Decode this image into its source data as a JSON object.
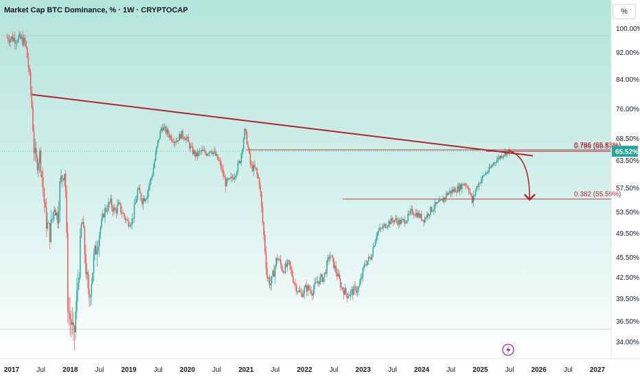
{
  "header": {
    "title": "Market Cap BTC Dominance, % · 1W · CRYPTOCAP",
    "scale_button": "%"
  },
  "colors": {
    "bg_top": "#b9e6dd",
    "bg_bottom": "#ffffff",
    "up": "#26a69a",
    "down": "#ef5350",
    "trend": "#b2222f",
    "price_badge": "#26a69a"
  },
  "chart_data": {
    "type": "candlestick",
    "title": "Market Cap BTC Dominance, % · 1W · CRYPTOCAP",
    "xlabel": "",
    "ylabel": "",
    "ylim": [
      33.0,
      101.5
    ],
    "xlim": [
      2016.92,
      2027.35
    ],
    "y_ticks": [
      "100.00%",
      "92.00%",
      "84.00%",
      "76.00%",
      "68.50%",
      "63.50%",
      "57.50%",
      "53.50%",
      "49.50%",
      "45.50%",
      "42.50%",
      "39.50%",
      "36.50%",
      "34.00%"
    ],
    "y_tick_values": [
      100,
      92,
      84,
      76,
      68.5,
      63.5,
      57.5,
      53.5,
      49.5,
      45.5,
      42.5,
      39.5,
      36.5,
      34
    ],
    "x_ticks": [
      {
        "label": "2017",
        "x": 2017.0,
        "year": true
      },
      {
        "label": "Jul",
        "x": 2017.5,
        "year": false
      },
      {
        "label": "2018",
        "x": 2018.0,
        "year": true
      },
      {
        "label": "Jul",
        "x": 2018.5,
        "year": false
      },
      {
        "label": "2019",
        "x": 2019.0,
        "year": true
      },
      {
        "label": "Jul",
        "x": 2019.5,
        "year": false
      },
      {
        "label": "2020",
        "x": 2020.0,
        "year": true
      },
      {
        "label": "Jul",
        "x": 2020.5,
        "year": false
      },
      {
        "label": "2021",
        "x": 2021.0,
        "year": true
      },
      {
        "label": "Jul",
        "x": 2021.5,
        "year": false
      },
      {
        "label": "2022",
        "x": 2022.0,
        "year": true
      },
      {
        "label": "Jul",
        "x": 2022.5,
        "year": false
      },
      {
        "label": "2023",
        "x": 2023.0,
        "year": true
      },
      {
        "label": "Jul",
        "x": 2023.5,
        "year": false
      },
      {
        "label": "2024",
        "x": 2024.0,
        "year": true
      },
      {
        "label": "Jul",
        "x": 2024.5,
        "year": false
      },
      {
        "label": "2025",
        "x": 2025.0,
        "year": true
      },
      {
        "label": "Jul",
        "x": 2025.5,
        "year": false
      },
      {
        "label": "2026",
        "x": 2026.0,
        "year": true
      },
      {
        "label": "Jul",
        "x": 2026.5,
        "year": false
      },
      {
        "label": "2027",
        "x": 2027.0,
        "year": true
      }
    ],
    "current_price": {
      "value": 65.52,
      "label": "65.52%"
    },
    "horizontal_gridlines": [
      97.5,
      35.5
    ],
    "trendline": {
      "from": [
        2017.35,
        79.8
      ],
      "to": [
        2025.9,
        64.5
      ]
    },
    "fib_levels": [
      {
        "label": "0.786 (65.83%)",
        "value": 65.83,
        "x_start": 2021.0
      },
      {
        "label": "0.786 (65.51%)",
        "value": 65.51,
        "x_start": 2025.1
      },
      {
        "label": "0.382 (55.59%)",
        "value": 55.59,
        "x_start": 2022.65
      }
    ],
    "projection": {
      "from": [
        2025.5,
        65.6
      ],
      "to": [
        2025.9,
        55.5
      ]
    },
    "path": [
      [
        2016.92,
        97.0
      ],
      [
        2017.05,
        96.6
      ],
      [
        2017.18,
        96.3
      ],
      [
        2017.25,
        95.2
      ],
      [
        2017.3,
        88.5
      ],
      [
        2017.35,
        80.0
      ],
      [
        2017.4,
        66.0
      ],
      [
        2017.45,
        62.5
      ],
      [
        2017.5,
        65.0
      ],
      [
        2017.55,
        58.0
      ],
      [
        2017.6,
        52.0
      ],
      [
        2017.67,
        49.5
      ],
      [
        2017.75,
        55.0
      ],
      [
        2017.8,
        52.0
      ],
      [
        2017.85,
        59.0
      ],
      [
        2017.93,
        61.5
      ],
      [
        2017.98,
        38.0
      ],
      [
        2018.04,
        36.2
      ],
      [
        2018.08,
        33.8
      ],
      [
        2018.12,
        38.5
      ],
      [
        2018.17,
        44.0
      ],
      [
        2018.22,
        52.5
      ],
      [
        2018.28,
        44.5
      ],
      [
        2018.33,
        39.0
      ],
      [
        2018.42,
        45.0
      ],
      [
        2018.5,
        49.0
      ],
      [
        2018.6,
        53.5
      ],
      [
        2018.7,
        55.0
      ],
      [
        2018.78,
        53.5
      ],
      [
        2018.85,
        54.5
      ],
      [
        2018.92,
        53.0
      ],
      [
        2019.0,
        51.5
      ],
      [
        2019.08,
        52.0
      ],
      [
        2019.17,
        57.0
      ],
      [
        2019.25,
        55.5
      ],
      [
        2019.33,
        56.5
      ],
      [
        2019.42,
        60.5
      ],
      [
        2019.5,
        66.5
      ],
      [
        2019.58,
        71.5
      ],
      [
        2019.67,
        70.0
      ],
      [
        2019.75,
        68.5
      ],
      [
        2019.83,
        68.0
      ],
      [
        2019.92,
        69.5
      ],
      [
        2020.0,
        68.5
      ],
      [
        2020.08,
        66.0
      ],
      [
        2020.17,
        64.5
      ],
      [
        2020.25,
        65.5
      ],
      [
        2020.33,
        65.0
      ],
      [
        2020.42,
        66.0
      ],
      [
        2020.5,
        64.5
      ],
      [
        2020.58,
        62.5
      ],
      [
        2020.67,
        58.5
      ],
      [
        2020.75,
        59.0
      ],
      [
        2020.83,
        60.5
      ],
      [
        2020.92,
        63.5
      ],
      [
        2021.0,
        70.5
      ],
      [
        2021.04,
        67.5
      ],
      [
        2021.1,
        62.0
      ],
      [
        2021.18,
        61.5
      ],
      [
        2021.25,
        58.5
      ],
      [
        2021.32,
        49.5
      ],
      [
        2021.38,
        42.5
      ],
      [
        2021.45,
        41.5
      ],
      [
        2021.55,
        45.5
      ],
      [
        2021.65,
        43.5
      ],
      [
        2021.75,
        44.5
      ],
      [
        2021.85,
        41.5
      ],
      [
        2021.95,
        40.0
      ],
      [
        2022.05,
        41.0
      ],
      [
        2022.15,
        40.5
      ],
      [
        2022.25,
        42.0
      ],
      [
        2022.35,
        42.5
      ],
      [
        2022.45,
        46.0
      ],
      [
        2022.55,
        43.5
      ],
      [
        2022.65,
        41.0
      ],
      [
        2022.75,
        40.0
      ],
      [
        2022.85,
        40.5
      ],
      [
        2022.95,
        41.0
      ],
      [
        2023.05,
        44.5
      ],
      [
        2023.15,
        45.5
      ],
      [
        2023.25,
        49.5
      ],
      [
        2023.35,
        50.5
      ],
      [
        2023.45,
        51.5
      ],
      [
        2023.55,
        52.0
      ],
      [
        2023.65,
        51.5
      ],
      [
        2023.75,
        52.0
      ],
      [
        2023.85,
        53.5
      ],
      [
        2023.95,
        53.0
      ],
      [
        2024.05,
        52.0
      ],
      [
        2024.15,
        53.5
      ],
      [
        2024.25,
        54.5
      ],
      [
        2024.35,
        55.0
      ],
      [
        2024.45,
        56.5
      ],
      [
        2024.55,
        57.0
      ],
      [
        2024.65,
        57.5
      ],
      [
        2024.75,
        58.5
      ],
      [
        2024.82,
        57.5
      ],
      [
        2024.88,
        55.0
      ],
      [
        2024.95,
        57.5
      ],
      [
        2025.02,
        59.0
      ],
      [
        2025.1,
        60.5
      ],
      [
        2025.18,
        61.5
      ],
      [
        2025.25,
        63.0
      ],
      [
        2025.33,
        64.0
      ],
      [
        2025.42,
        65.0
      ],
      [
        2025.5,
        65.52
      ]
    ]
  },
  "footer": {
    "event_icon": "lightning-icon"
  }
}
